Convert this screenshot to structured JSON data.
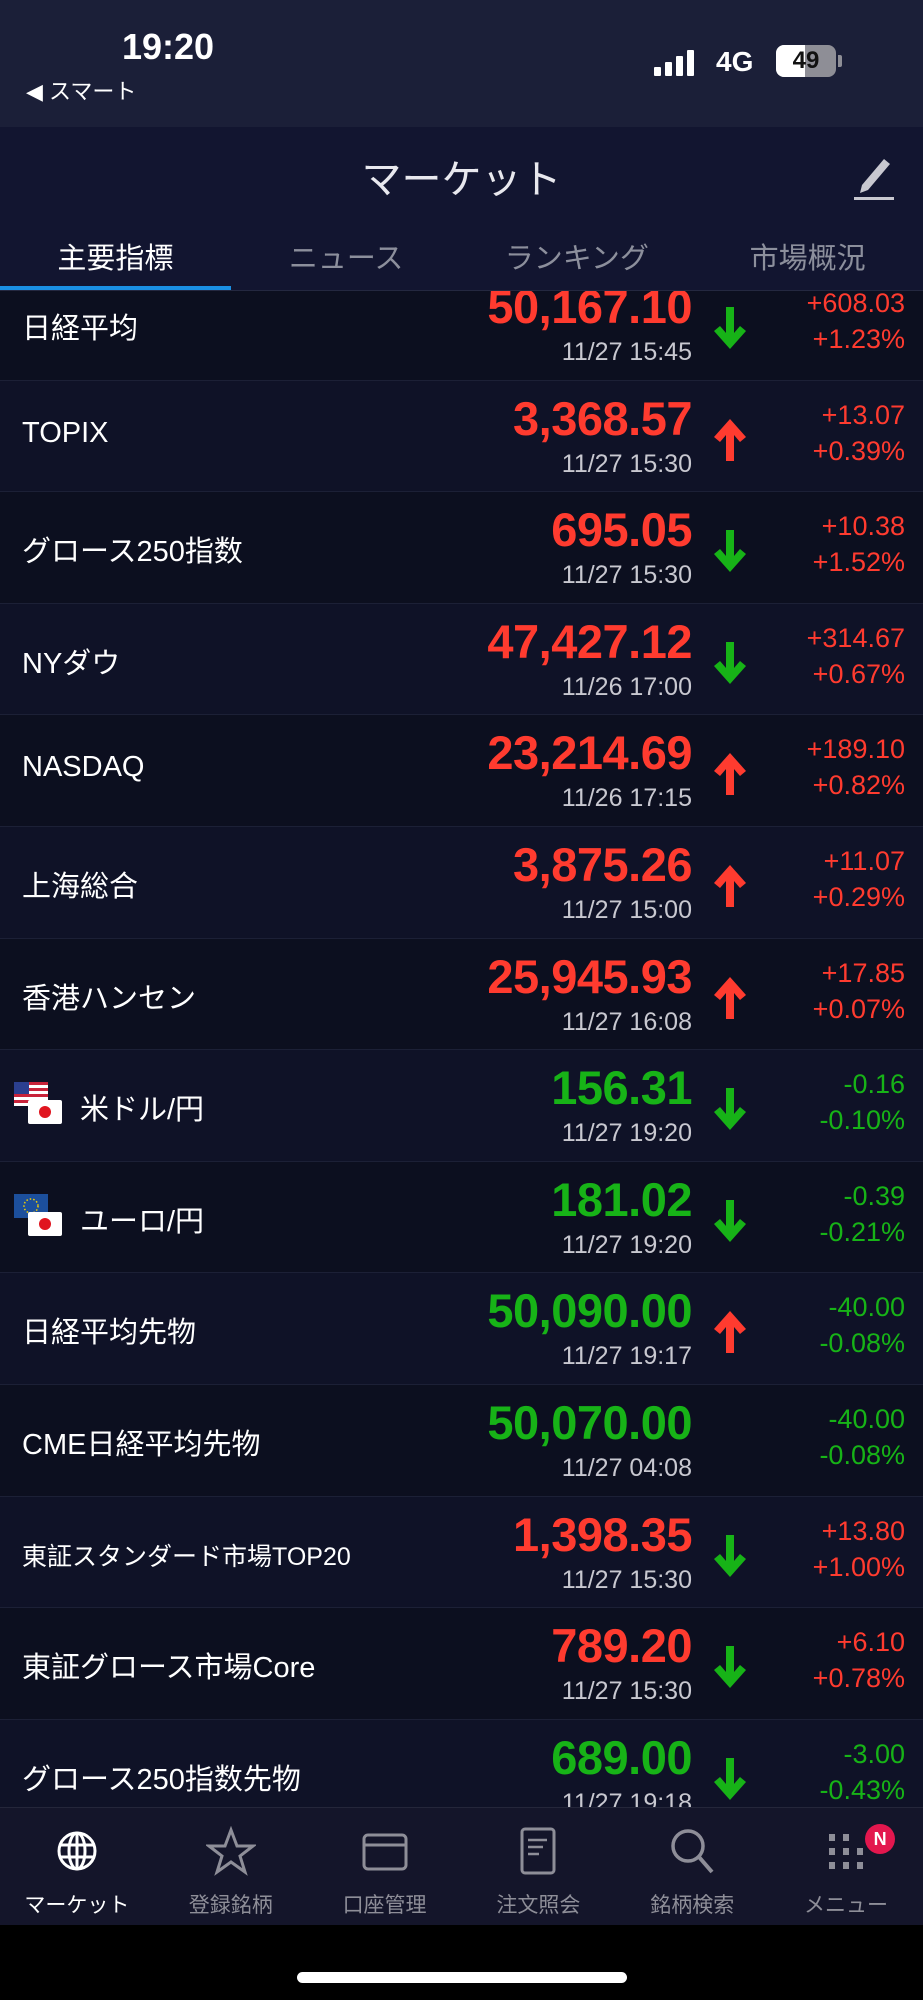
{
  "status_bar": {
    "time": "19:20",
    "back_label": "◀ スマート",
    "network": "4G",
    "battery": "49",
    "battery_level": 0.49
  },
  "header": {
    "title": "マーケット",
    "edit_icon": "pencil-icon"
  },
  "tabs": [
    {
      "label": "主要指標",
      "active": true
    },
    {
      "label": "ニュース"
    },
    {
      "label": "ランキング"
    },
    {
      "label": "市場概況"
    }
  ],
  "colors": {
    "up": "#ff3b2f",
    "down": "#17b317",
    "tab_indicator": "#1a8fe3",
    "badge": "#e3174e"
  },
  "rows": [
    {
      "name": "日経平均",
      "value": "50,167.10",
      "date": "11/27 15:45",
      "change": "+608.03",
      "percent": "+1.23%",
      "color": "up",
      "arrow": "down"
    },
    {
      "name": "TOPIX",
      "value": "3,368.57",
      "date": "11/27 15:30",
      "change": "+13.07",
      "percent": "+0.39%",
      "color": "up",
      "arrow": "up"
    },
    {
      "name": "グロース250指数",
      "value": "695.05",
      "date": "11/27 15:30",
      "change": "+10.38",
      "percent": "+1.52%",
      "color": "up",
      "arrow": "down"
    },
    {
      "name": "NYダウ",
      "value": "47,427.12",
      "date": "11/26 17:00",
      "change": "+314.67",
      "percent": "+0.67%",
      "color": "up",
      "arrow": "down"
    },
    {
      "name": "NASDAQ",
      "value": "23,214.69",
      "date": "11/26 17:15",
      "change": "+189.10",
      "percent": "+0.82%",
      "color": "up",
      "arrow": "up"
    },
    {
      "name": "上海総合",
      "value": "3,875.26",
      "date": "11/27 15:00",
      "change": "+11.07",
      "percent": "+0.29%",
      "color": "up",
      "arrow": "up"
    },
    {
      "name": "香港ハンセン",
      "value": "25,945.93",
      "date": "11/27 16:08",
      "change": "+17.85",
      "percent": "+0.07%",
      "color": "up",
      "arrow": "up"
    },
    {
      "name": "米ドル/円",
      "value": "156.31",
      "date": "11/27 19:20",
      "change": "-0.16",
      "percent": "-0.10%",
      "color": "dn",
      "arrow": "down",
      "flag": "us"
    },
    {
      "name": "ユーロ/円",
      "value": "181.02",
      "date": "11/27 19:20",
      "change": "-0.39",
      "percent": "-0.21%",
      "color": "dn",
      "arrow": "down",
      "flag": "eu"
    },
    {
      "name": "日経平均先物",
      "value": "50,090.00",
      "date": "11/27 19:17",
      "change": "-40.00",
      "percent": "-0.08%",
      "color": "dn",
      "arrow": "up"
    },
    {
      "name": "CME日経平均先物",
      "value": "50,070.00",
      "date": "11/27 04:08",
      "change": "-40.00",
      "percent": "-0.08%",
      "color": "dn",
      "arrow": "none"
    },
    {
      "name": "東証スタンダード市場TOP20",
      "value": "1,398.35",
      "date": "11/27 15:30",
      "change": "+13.80",
      "percent": "+1.00%",
      "color": "up",
      "arrow": "down",
      "small": true
    },
    {
      "name": "東証グロース市場Core",
      "value": "789.20",
      "date": "11/27 15:30",
      "change": "+6.10",
      "percent": "+0.78%",
      "color": "up",
      "arrow": "down"
    },
    {
      "name": "グロース250指数先物",
      "value": "689.00",
      "date": "11/27 19:18",
      "change": "-3.00",
      "percent": "-0.43%",
      "color": "dn",
      "arrow": "down"
    }
  ],
  "tabbar": [
    {
      "label": "マーケット",
      "icon": "globe-icon",
      "active": true
    },
    {
      "label": "登録銘柄",
      "icon": "star-icon"
    },
    {
      "label": "口座管理",
      "icon": "card-icon"
    },
    {
      "label": "注文照会",
      "icon": "document-icon"
    },
    {
      "label": "銘柄検索",
      "icon": "search-icon"
    },
    {
      "label": "メニュー",
      "icon": "grid-icon",
      "badge": "N"
    }
  ]
}
